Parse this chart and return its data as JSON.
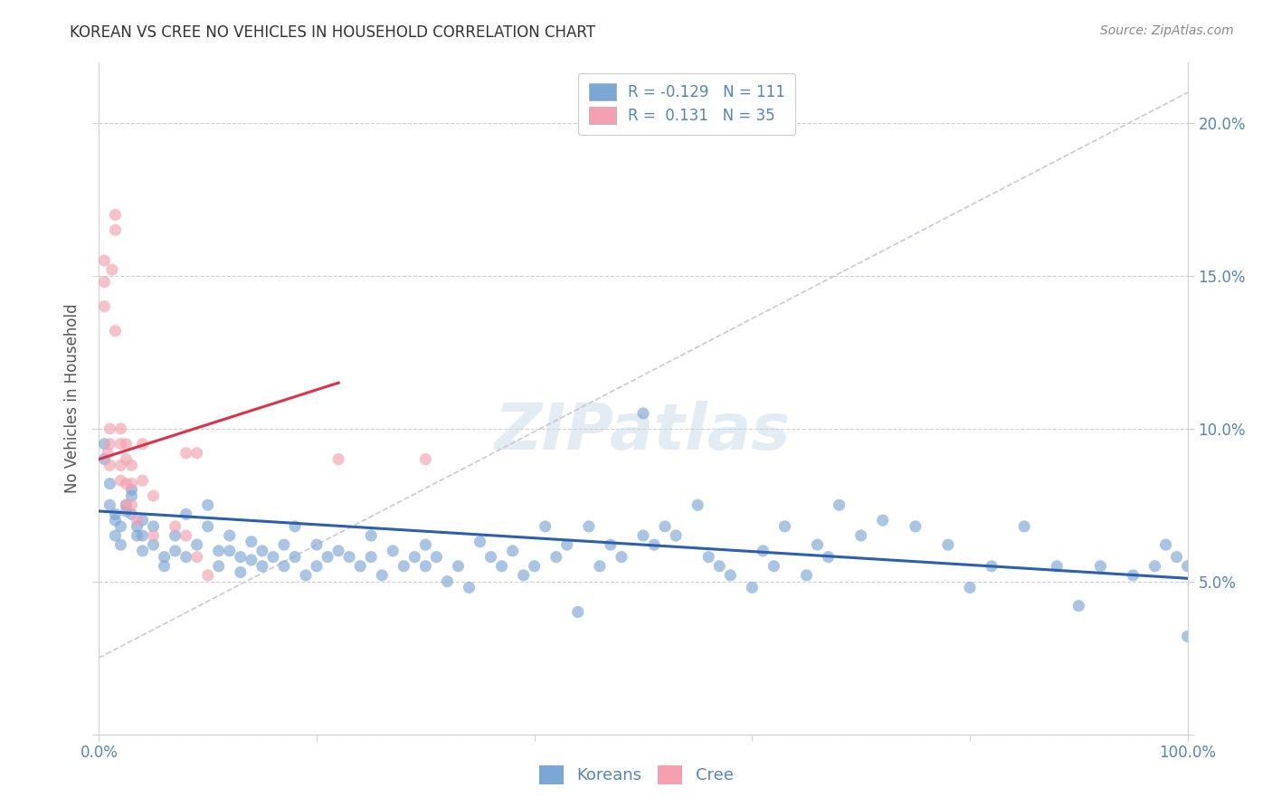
{
  "title": "KOREAN VS CREE NO VEHICLES IN HOUSEHOLD CORRELATION CHART",
  "source": "Source: ZipAtlas.com",
  "ylabel": "No Vehicles in Household",
  "watermark": "ZIPatlas",
  "xlim": [
    0.0,
    1.0
  ],
  "ylim": [
    0.0,
    0.22
  ],
  "korean_color": "#7ba7d4",
  "cree_color": "#f4a0b0",
  "korean_line_color": "#2c5fad",
  "cree_line_color": "#d9344a",
  "dashed_line_color": "#c8c8d8",
  "legend_korean_R": "-0.129",
  "legend_korean_N": "111",
  "legend_cree_R": "0.131",
  "legend_cree_N": "35",
  "korean_scatter_x": [
    0.005,
    0.005,
    0.01,
    0.01,
    0.015,
    0.015,
    0.015,
    0.02,
    0.02,
    0.025,
    0.025,
    0.03,
    0.03,
    0.03,
    0.035,
    0.035,
    0.04,
    0.04,
    0.04,
    0.05,
    0.05,
    0.06,
    0.06,
    0.07,
    0.07,
    0.08,
    0.08,
    0.09,
    0.1,
    0.1,
    0.11,
    0.11,
    0.12,
    0.12,
    0.13,
    0.13,
    0.14,
    0.14,
    0.15,
    0.15,
    0.16,
    0.17,
    0.17,
    0.18,
    0.18,
    0.19,
    0.2,
    0.2,
    0.21,
    0.22,
    0.23,
    0.24,
    0.25,
    0.25,
    0.26,
    0.27,
    0.28,
    0.29,
    0.3,
    0.3,
    0.31,
    0.32,
    0.33,
    0.34,
    0.35,
    0.36,
    0.37,
    0.38,
    0.39,
    0.4,
    0.41,
    0.42,
    0.43,
    0.44,
    0.45,
    0.46,
    0.47,
    0.48,
    0.5,
    0.5,
    0.51,
    0.52,
    0.53,
    0.55,
    0.56,
    0.57,
    0.58,
    0.6,
    0.61,
    0.62,
    0.63,
    0.65,
    0.66,
    0.67,
    0.68,
    0.7,
    0.72,
    0.75,
    0.78,
    0.8,
    0.82,
    0.85,
    0.88,
    0.9,
    0.92,
    0.95,
    0.97,
    0.98,
    0.99,
    1.0,
    1.0
  ],
  "korean_scatter_y": [
    0.09,
    0.095,
    0.075,
    0.082,
    0.07,
    0.072,
    0.065,
    0.068,
    0.062,
    0.075,
    0.073,
    0.08,
    0.078,
    0.072,
    0.068,
    0.065,
    0.07,
    0.065,
    0.06,
    0.068,
    0.062,
    0.058,
    0.055,
    0.065,
    0.06,
    0.072,
    0.058,
    0.062,
    0.075,
    0.068,
    0.06,
    0.055,
    0.065,
    0.06,
    0.058,
    0.053,
    0.063,
    0.057,
    0.06,
    0.055,
    0.058,
    0.062,
    0.055,
    0.068,
    0.058,
    0.052,
    0.055,
    0.062,
    0.058,
    0.06,
    0.058,
    0.055,
    0.065,
    0.058,
    0.052,
    0.06,
    0.055,
    0.058,
    0.062,
    0.055,
    0.058,
    0.05,
    0.055,
    0.048,
    0.063,
    0.058,
    0.055,
    0.06,
    0.052,
    0.055,
    0.068,
    0.058,
    0.062,
    0.04,
    0.068,
    0.055,
    0.062,
    0.058,
    0.105,
    0.065,
    0.062,
    0.068,
    0.065,
    0.075,
    0.058,
    0.055,
    0.052,
    0.048,
    0.06,
    0.055,
    0.068,
    0.052,
    0.062,
    0.058,
    0.075,
    0.065,
    0.07,
    0.068,
    0.062,
    0.048,
    0.055,
    0.068,
    0.055,
    0.042,
    0.055,
    0.052,
    0.055,
    0.062,
    0.058,
    0.032,
    0.055
  ],
  "cree_scatter_x": [
    0.005,
    0.005,
    0.005,
    0.008,
    0.01,
    0.01,
    0.01,
    0.012,
    0.015,
    0.015,
    0.015,
    0.02,
    0.02,
    0.02,
    0.02,
    0.025,
    0.025,
    0.025,
    0.025,
    0.03,
    0.03,
    0.03,
    0.035,
    0.04,
    0.04,
    0.05,
    0.05,
    0.07,
    0.08,
    0.08,
    0.09,
    0.09,
    0.1,
    0.22,
    0.3
  ],
  "cree_scatter_y": [
    0.155,
    0.148,
    0.14,
    0.092,
    0.1,
    0.095,
    0.088,
    0.152,
    0.17,
    0.165,
    0.132,
    0.1,
    0.095,
    0.088,
    0.083,
    0.095,
    0.09,
    0.082,
    0.075,
    0.088,
    0.082,
    0.075,
    0.07,
    0.095,
    0.083,
    0.078,
    0.065,
    0.068,
    0.092,
    0.065,
    0.092,
    0.058,
    0.052,
    0.09,
    0.09
  ],
  "background_color": "#ffffff",
  "grid_color": "#d0d0d0",
  "axis_color": "#5585b5",
  "title_color": "#333333",
  "ylabel_color": "#555555"
}
